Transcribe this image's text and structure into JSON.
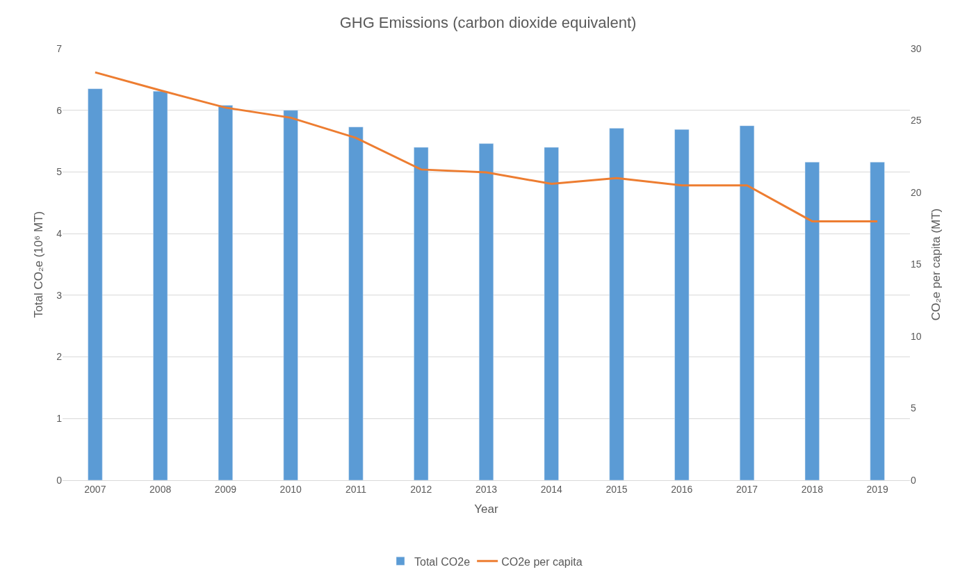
{
  "chart_data": {
    "type": "bar",
    "title": "GHG Emissions (carbon dioxide equivalent)",
    "xlabel": "Year",
    "ylabel": "Total CO₂e (10⁶ MT)",
    "y2label": "CO₂e per capita (MT)",
    "categories": [
      "2007",
      "2008",
      "2009",
      "2010",
      "2011",
      "2012",
      "2013",
      "2014",
      "2015",
      "2016",
      "2017",
      "2018",
      "2019"
    ],
    "series": [
      {
        "name": "Total CO2e",
        "color": "#5b9bd5",
        "values": [
          6.35,
          6.31,
          6.08,
          6.0,
          5.73,
          5.4,
          5.46,
          5.4,
          5.71,
          5.69,
          5.75,
          5.16,
          5.16
        ]
      },
      {
        "name": "CO2e per capita",
        "type": "line",
        "axis": "y2",
        "color": "#ed7d31",
        "marker": "none",
        "values": [
          28.35,
          27.1,
          25.9,
          25.2,
          23.8,
          21.6,
          21.4,
          20.6,
          21.0,
          20.5,
          20.5,
          18.0,
          18.0
        ]
      }
    ],
    "ylim": [
      0,
      7
    ],
    "yticks": [
      0,
      1,
      2,
      3,
      4,
      5,
      6,
      7
    ],
    "y2lim": [
      0,
      30
    ],
    "y2ticks": [
      0,
      5,
      10,
      15,
      20,
      25,
      30
    ],
    "grid": "y",
    "legend": "bottom"
  }
}
